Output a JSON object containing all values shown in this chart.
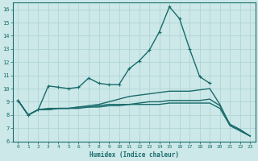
{
  "xlabel": "Humidex (Indice chaleur)",
  "ylabel": "",
  "background_color": "#cce8e8",
  "grid_color": "#b0d4d4",
  "line_color": "#1a6b6b",
  "xlim": [
    -0.5,
    23.5
  ],
  "ylim": [
    6,
    16.5
  ],
  "xticks": [
    0,
    1,
    2,
    3,
    4,
    5,
    6,
    7,
    8,
    9,
    10,
    11,
    12,
    13,
    14,
    15,
    16,
    17,
    18,
    19,
    20,
    21,
    22,
    23
  ],
  "yticks": [
    6,
    7,
    8,
    9,
    10,
    11,
    12,
    13,
    14,
    15,
    16
  ],
  "series": [
    {
      "x": [
        0,
        1,
        2,
        3,
        4,
        5,
        6,
        7,
        8,
        9,
        10,
        11,
        12,
        13,
        14,
        15,
        16,
        17,
        18,
        19
      ],
      "y": [
        9.1,
        8.0,
        8.4,
        10.2,
        10.1,
        10.0,
        10.1,
        10.8,
        10.4,
        10.3,
        10.3,
        11.5,
        12.1,
        12.9,
        14.3,
        16.2,
        15.3,
        13.0,
        10.9,
        10.4
      ],
      "marker": true,
      "linewidth": 1.0
    },
    {
      "x": [
        0,
        1,
        2,
        3,
        4,
        5,
        6,
        7,
        8,
        9,
        10,
        11,
        12,
        13,
        14,
        15,
        16,
        17,
        18,
        19,
        20,
        21,
        22,
        23
      ],
      "y": [
        9.1,
        8.0,
        8.4,
        8.5,
        8.5,
        8.5,
        8.6,
        8.7,
        8.8,
        9.0,
        9.2,
        9.4,
        9.5,
        9.6,
        9.7,
        9.8,
        9.8,
        9.8,
        9.9,
        10.0,
        8.8,
        7.2,
        6.8,
        6.4
      ],
      "marker": false,
      "linewidth": 1.0
    },
    {
      "x": [
        0,
        1,
        2,
        3,
        4,
        5,
        6,
        7,
        8,
        9,
        10,
        11,
        12,
        13,
        14,
        15,
        16,
        17,
        18,
        19,
        20,
        21,
        22,
        23
      ],
      "y": [
        9.1,
        8.0,
        8.4,
        8.4,
        8.5,
        8.5,
        8.6,
        8.6,
        8.7,
        8.8,
        8.8,
        8.8,
        8.9,
        9.0,
        9.0,
        9.1,
        9.1,
        9.1,
        9.1,
        9.2,
        8.7,
        7.3,
        6.9,
        6.4
      ],
      "marker": false,
      "linewidth": 1.0
    },
    {
      "x": [
        0,
        1,
        2,
        3,
        4,
        5,
        6,
        7,
        8,
        9,
        10,
        11,
        12,
        13,
        14,
        15,
        16,
        17,
        18,
        19,
        20,
        21,
        22,
        23
      ],
      "y": [
        9.1,
        8.0,
        8.4,
        8.4,
        8.5,
        8.5,
        8.5,
        8.6,
        8.6,
        8.7,
        8.7,
        8.8,
        8.8,
        8.8,
        8.8,
        8.9,
        8.9,
        8.9,
        8.9,
        8.9,
        8.5,
        7.2,
        6.8,
        6.4
      ],
      "marker": false,
      "linewidth": 1.0
    }
  ]
}
